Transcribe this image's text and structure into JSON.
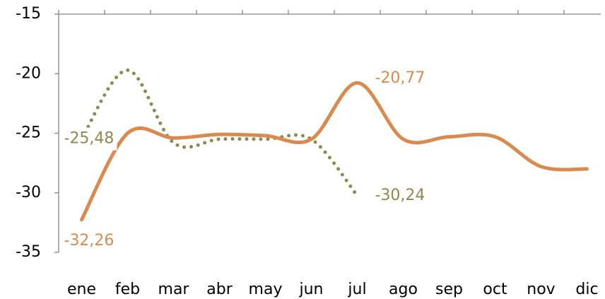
{
  "chart_data": {
    "type": "line",
    "categories": [
      "ene",
      "feb",
      "mar",
      "abr",
      "may",
      "jun",
      "jul",
      "ago",
      "sep",
      "oct",
      "nov",
      "dic"
    ],
    "series": [
      {
        "color": "#d98b4f",
        "style": "solid",
        "values": [
          -32.26,
          -25.0,
          -25.4,
          -25.1,
          -25.2,
          -25.5,
          -20.77,
          -25.5,
          -25.3,
          -25.3,
          -27.8,
          -28.0
        ],
        "value_labels": [
          "-32,26",
          null,
          null,
          null,
          null,
          null,
          "-20,77",
          null,
          null,
          null,
          null,
          null
        ]
      },
      {
        "color": "#8c8a4f",
        "style": "dotted",
        "values": [
          -25.48,
          -19.7,
          -25.8,
          -25.5,
          -25.5,
          -25.5,
          -30.24,
          null,
          null,
          null,
          null,
          null
        ],
        "value_labels": [
          "-25,48",
          null,
          null,
          null,
          null,
          null,
          "-30,24",
          null,
          null,
          null,
          null,
          null
        ]
      }
    ],
    "ylim": [
      -35,
      -15
    ],
    "yticks": [
      -35,
      -30,
      -25,
      -20,
      -15
    ]
  }
}
